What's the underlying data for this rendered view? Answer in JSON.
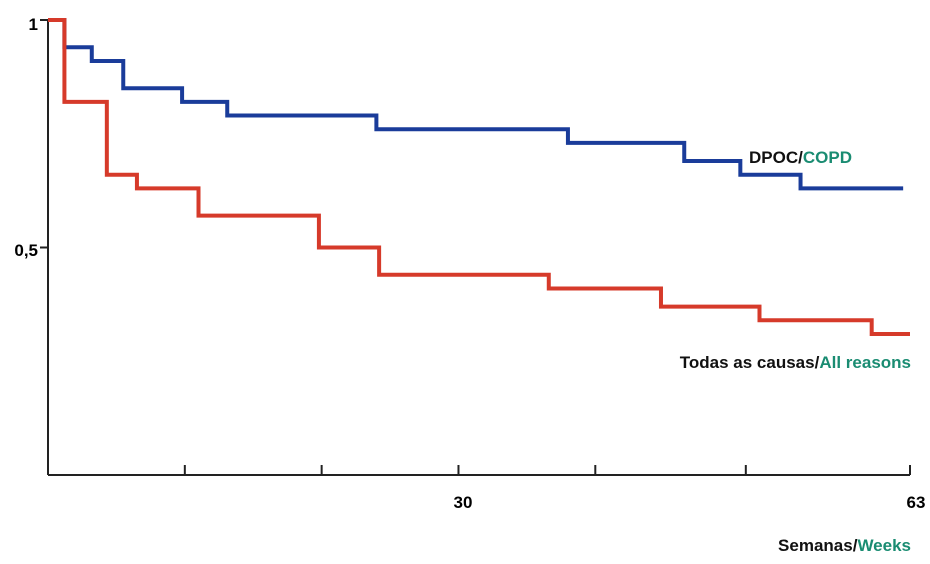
{
  "chart_data": {
    "type": "line",
    "subtype": "step",
    "xlabel": {
      "pt": "Semanas",
      "sep": "/",
      "en": "Weeks"
    },
    "ylim": [
      0,
      1
    ],
    "xlim": [
      0,
      63
    ],
    "x_tick_labels": [
      "30",
      "63"
    ],
    "x_tick_positions": [
      10,
      20,
      30,
      40,
      51,
      63
    ],
    "y_tick_labels": [
      "1",
      "0,5"
    ],
    "grid": false,
    "colors": {
      "copd": "#1a3c9a",
      "all": "#d63a2a",
      "english_text": "#1a8c72",
      "axis": "#222222"
    },
    "series": [
      {
        "label": {
          "pt": "DPOC",
          "sep": "/",
          "en": "COPD"
        },
        "points": [
          [
            0,
            1.0
          ],
          [
            1.2,
            0.94
          ],
          [
            3.2,
            0.91
          ],
          [
            5.5,
            0.85
          ],
          [
            9.8,
            0.82
          ],
          [
            13.1,
            0.79
          ],
          [
            24.0,
            0.76
          ],
          [
            38.0,
            0.73
          ],
          [
            46.5,
            0.69
          ],
          [
            50.6,
            0.66
          ],
          [
            55.0,
            0.63
          ],
          [
            62.5,
            0.63
          ]
        ]
      },
      {
        "label": {
          "pt": "Todas as causas",
          "sep": "/",
          "en": "All reasons"
        },
        "points": [
          [
            0,
            1.0
          ],
          [
            1.2,
            0.82
          ],
          [
            4.3,
            0.66
          ],
          [
            6.5,
            0.63
          ],
          [
            11.0,
            0.57
          ],
          [
            19.8,
            0.5
          ],
          [
            24.2,
            0.44
          ],
          [
            36.6,
            0.41
          ],
          [
            44.8,
            0.37
          ],
          [
            52.0,
            0.34
          ],
          [
            60.2,
            0.31
          ],
          [
            63.0,
            0.31
          ]
        ]
      }
    ]
  }
}
